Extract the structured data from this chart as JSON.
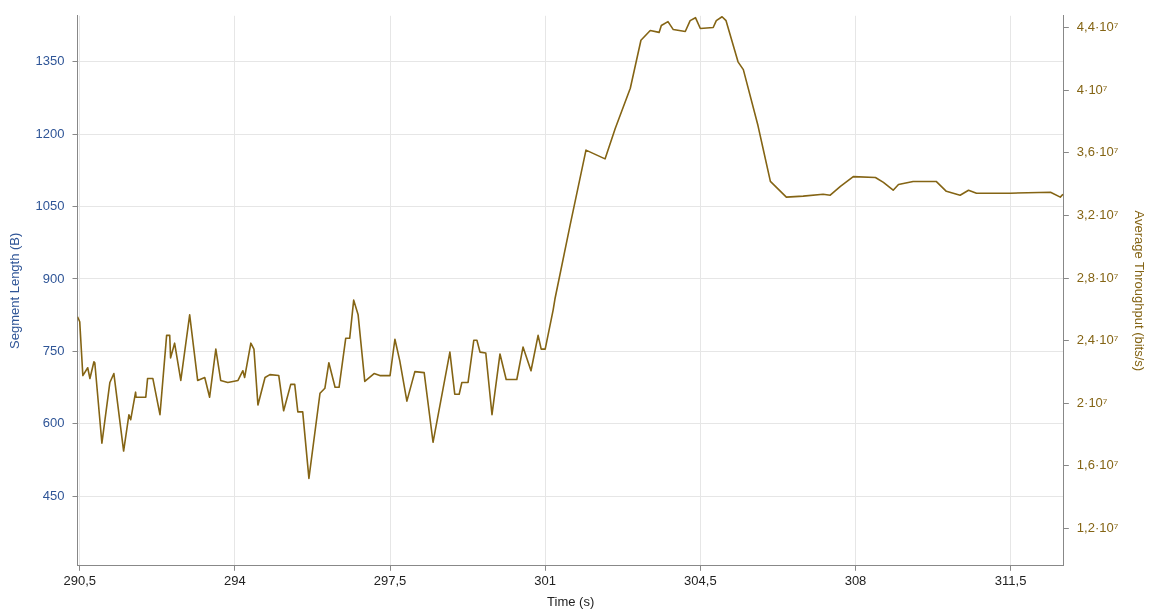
{
  "chart_data": {
    "type": "line",
    "xlabel": "Time (s)",
    "ylabel": "Segment Length (B)",
    "y2label": "Average Throughput (bits/s)",
    "xlim": [
      290.45,
      312.7
    ],
    "xticks": [
      {
        "value": 290.5,
        "label": "290,5"
      },
      294,
      {
        "value": 297.5,
        "label": "297,5"
      },
      301,
      {
        "value": 304.5,
        "label": "304,5"
      },
      308,
      {
        "value": 311.5,
        "label": "311,5"
      }
    ],
    "ylim": [
      306,
      1445
    ],
    "yticks": [
      450,
      600,
      750,
      900,
      1050,
      1200,
      1350
    ],
    "y2lim": [
      9620000,
      44750000
    ],
    "y2ticks": [
      {
        "value": 12000000,
        "label": "1,2·10⁷"
      },
      {
        "value": 16000000,
        "label": "1,6·10⁷"
      },
      {
        "value": 20000000,
        "label": "2·10⁷"
      },
      {
        "value": 24000000,
        "label": "2,4·10⁷"
      },
      {
        "value": 28000000,
        "label": "2,8·10⁷"
      },
      {
        "value": 32000000,
        "label": "3,2·10⁷"
      },
      {
        "value": 36000000,
        "label": "3,6·10⁷"
      },
      {
        "value": 40000000,
        "label": "4·10⁷"
      },
      {
        "value": 44000000,
        "label": "4,4·10⁷"
      }
    ],
    "grid": true,
    "marker": "none",
    "x": [
      290.45,
      290.5,
      290.57,
      290.68,
      290.73,
      290.82,
      290.84,
      291.0,
      291.18,
      291.27,
      291.49,
      291.61,
      291.65,
      291.76,
      291.77,
      291.99,
      292.03,
      292.15,
      292.31,
      292.46,
      292.53,
      292.55,
      292.64,
      292.78,
      292.98,
      293.16,
      293.32,
      293.43,
      293.57,
      293.68,
      293.84,
      294.07,
      294.18,
      294.22,
      294.36,
      294.43,
      294.52,
      294.68,
      294.79,
      294.99,
      295.1,
      295.26,
      295.35,
      295.42,
      295.53,
      295.67,
      295.92,
      296.03,
      296.12,
      296.26,
      296.35,
      296.5,
      296.59,
      296.68,
      296.78,
      296.93,
      297.14,
      297.27,
      297.5,
      297.61,
      297.72,
      297.88,
      298.06,
      298.27,
      298.47,
      298.85,
      298.96,
      299.06,
      299.12,
      299.26,
      299.39,
      299.46,
      299.53,
      299.66,
      299.8,
      299.98,
      300.12,
      300.36,
      300.5,
      300.68,
      300.84,
      300.91,
      301.0,
      301.18,
      301.22,
      301.56,
      301.92,
      302.35,
      302.58,
      302.92,
      303.16,
      303.37,
      303.57,
      303.62,
      303.77,
      303.89,
      304.16,
      304.27,
      304.39,
      304.5,
      304.79,
      304.86,
      304.99,
      305.08,
      305.35,
      305.47,
      305.8,
      306.08,
      306.44,
      306.82,
      307.27,
      307.43,
      307.66,
      307.95,
      308.45,
      308.63,
      308.85,
      308.97,
      309.3,
      309.82,
      310.05,
      310.36,
      310.55,
      310.73,
      311.49,
      312.4,
      312.62,
      312.68
    ],
    "series": [
      {
        "axis": "y2",
        "color": "#846414",
        "values": [
          25530000,
          25210000,
          21770000,
          22270000,
          21580000,
          22650000,
          22590000,
          17450000,
          21330000,
          21900000,
          16950000,
          19270000,
          18950000,
          20710000,
          20390000,
          20390000,
          21580000,
          21580000,
          19270000,
          24340000,
          24340000,
          22900000,
          23840000,
          21460000,
          25650000,
          21460000,
          21650000,
          20390000,
          23460000,
          21460000,
          21330000,
          21460000,
          22080000,
          21650000,
          23840000,
          23460000,
          19890000,
          21650000,
          21830000,
          21770000,
          19520000,
          21210000,
          21210000,
          19450000,
          19450000,
          15200000,
          20640000,
          20960000,
          22590000,
          21020000,
          21020000,
          24150000,
          24150000,
          26590000,
          25650000,
          21400000,
          21900000,
          21770000,
          21770000,
          24090000,
          22710000,
          20140000,
          22020000,
          21960000,
          17510000,
          23270000,
          20580000,
          20580000,
          21330000,
          21330000,
          24030000,
          24030000,
          23270000,
          23210000,
          19270000,
          23150000,
          21520000,
          21520000,
          23590000,
          22080000,
          24340000,
          23460000,
          23460000,
          25970000,
          26660000,
          31350000,
          36170000,
          35610000,
          37550000,
          40120000,
          43190000,
          43810000,
          43690000,
          44130000,
          44380000,
          43870000,
          43750000,
          44440000,
          44630000,
          43940000,
          44000000,
          44440000,
          44690000,
          44440000,
          41810000,
          41310000,
          37740000,
          34170000,
          33170000,
          33230000,
          33350000,
          33290000,
          33860000,
          34480000,
          34420000,
          34110000,
          33610000,
          33980000,
          34170000,
          34170000,
          33540000,
          33290000,
          33610000,
          33420000,
          33420000,
          33480000,
          33170000,
          33350000
        ]
      }
    ]
  }
}
